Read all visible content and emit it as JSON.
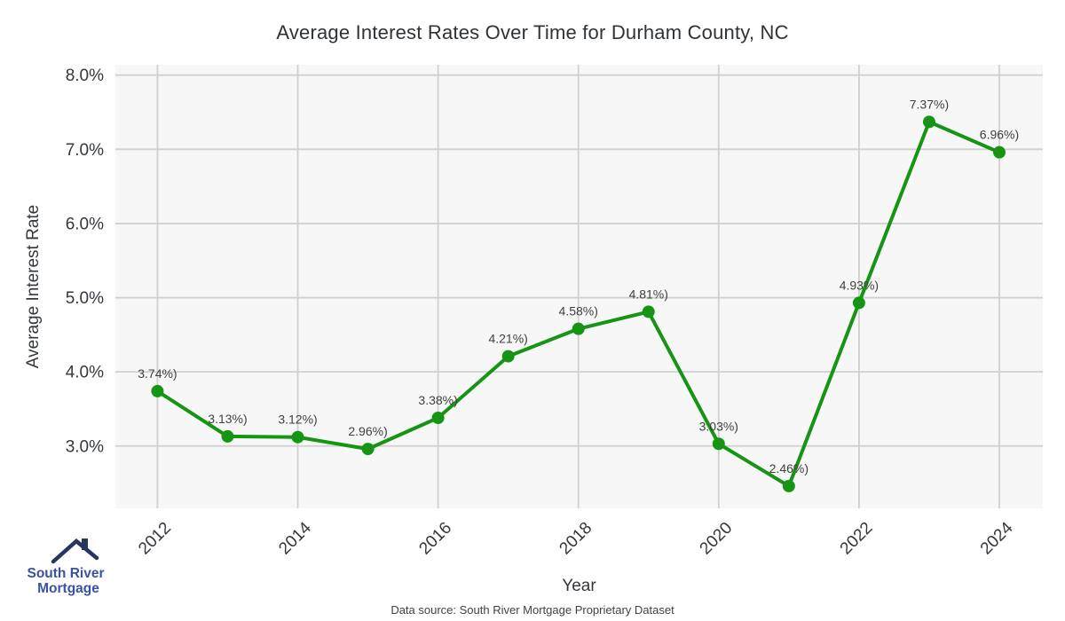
{
  "chart_data": {
    "type": "line",
    "title": "Average Interest Rates Over Time for Durham County, NC",
    "xlabel": "Year",
    "ylabel": "Average Interest Rate",
    "x": [
      2012,
      2013,
      2014,
      2015,
      2016,
      2017,
      2018,
      2019,
      2020,
      2021,
      2022,
      2023,
      2024
    ],
    "values": [
      3.74,
      3.13,
      3.12,
      2.96,
      3.38,
      4.21,
      4.58,
      4.81,
      3.03,
      2.46,
      4.93,
      7.37,
      6.96
    ],
    "point_labels": [
      "3.74%)",
      "3.13%)",
      "3.12%)",
      "2.96%)",
      "3.38%)",
      "4.21%)",
      "4.58%)",
      "4.81%)",
      "3.03%)",
      "2.46%)",
      "4.93%)",
      "7.37%)",
      "6.96%)"
    ],
    "x_ticks": [
      2012,
      2014,
      2016,
      2018,
      2020,
      2022,
      2024
    ],
    "y_ticks": [
      3,
      4,
      5,
      6,
      7,
      8
    ],
    "y_tick_labels": [
      "3.0%",
      "4.0%",
      "5.0%",
      "6.0%",
      "7.0%",
      "8.0%"
    ],
    "xlim": [
      2011.4,
      2024.62
    ],
    "ylim": [
      2.16,
      8.14
    ],
    "grid": true,
    "legend": "none",
    "line_color": "#169413",
    "plot_bg": "#f7f7f7",
    "grid_color": "#d0d0d0",
    "tick_label_color": "#33373d",
    "point_label_color": "#404040"
  },
  "footer": {
    "source": "Data source: South River Mortgage Proprietary Dataset"
  },
  "logo": {
    "line1": "South River",
    "line2": "Mortgage",
    "text_color": "#3b51a3",
    "roof_color": "#273561"
  }
}
